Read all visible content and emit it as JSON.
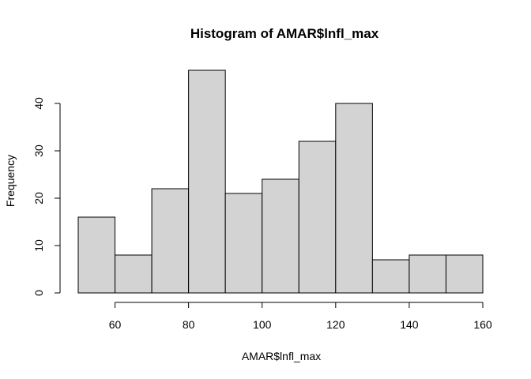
{
  "chart_data": {
    "type": "bar",
    "title": "Histogram of AMAR$lnfl_max",
    "xlabel": "AMAR$lnfl_max",
    "ylabel": "Frequency",
    "bins": [
      {
        "from": 50,
        "to": 60,
        "count": 16
      },
      {
        "from": 60,
        "to": 70,
        "count": 8
      },
      {
        "from": 70,
        "to": 80,
        "count": 22
      },
      {
        "from": 80,
        "to": 90,
        "count": 47
      },
      {
        "from": 90,
        "to": 100,
        "count": 21
      },
      {
        "from": 100,
        "to": 110,
        "count": 24
      },
      {
        "from": 110,
        "to": 120,
        "count": 32
      },
      {
        "from": 120,
        "to": 130,
        "count": 40
      },
      {
        "from": 130,
        "to": 140,
        "count": 7
      },
      {
        "from": 140,
        "to": 150,
        "count": 8
      },
      {
        "from": 150,
        "to": 160,
        "count": 8
      }
    ],
    "xticks": [
      60,
      80,
      100,
      120,
      140,
      160
    ],
    "yticks": [
      0,
      10,
      20,
      30,
      40
    ],
    "xlim": [
      50,
      160
    ],
    "ylim": [
      0,
      47
    ],
    "grid": false,
    "bar_color": "#d3d3d3"
  }
}
